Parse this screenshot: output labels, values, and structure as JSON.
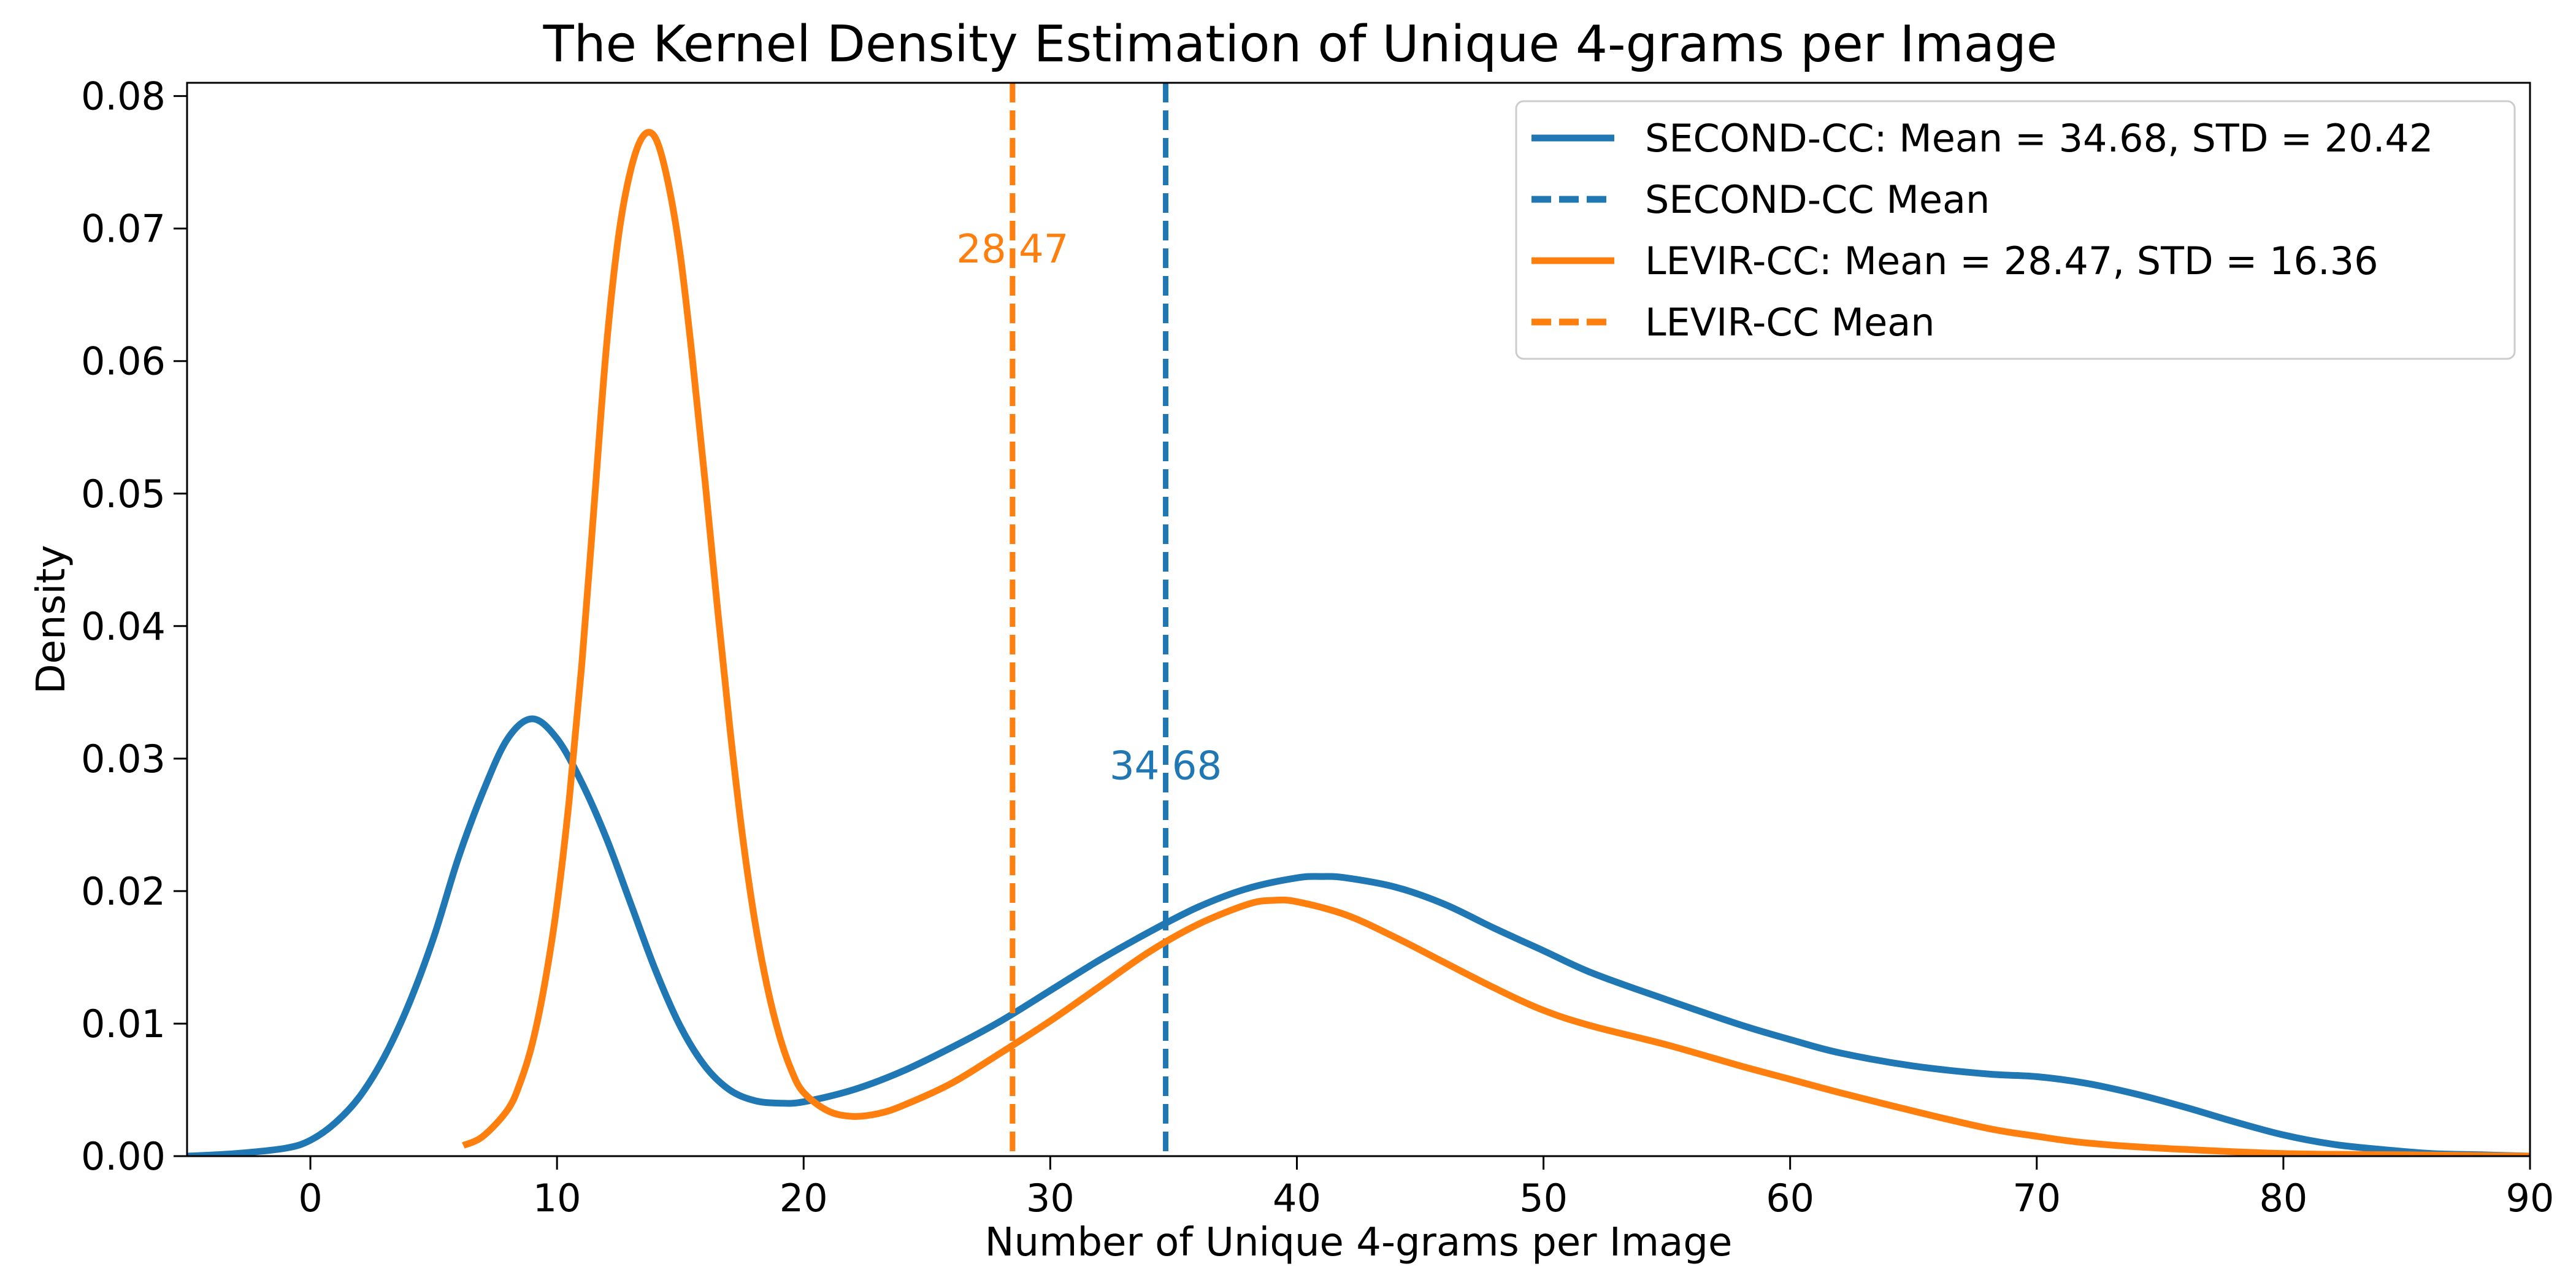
{
  "chart_data": {
    "type": "line",
    "title": "The Kernel Density Estimation of Unique 4-grams per Image",
    "xlabel": "Number of Unique 4-grams per Image",
    "ylabel": "Density",
    "xlim": [
      -5,
      90
    ],
    "ylim": [
      0,
      0.081
    ],
    "xticks": [
      0,
      10,
      20,
      30,
      40,
      50,
      60,
      70,
      80,
      90
    ],
    "xtick_labels": [
      "0",
      "10",
      "20",
      "30",
      "40",
      "50",
      "60",
      "70",
      "80",
      "90"
    ],
    "yticks": [
      0,
      0.01,
      0.02,
      0.03,
      0.04,
      0.05,
      0.06,
      0.07,
      0.08
    ],
    "ytick_labels": [
      "0.00",
      "0.01",
      "0.02",
      "0.03",
      "0.04",
      "0.05",
      "0.06",
      "0.07",
      "0.08"
    ],
    "grid": false,
    "legend_position": "top-right",
    "series": [
      {
        "name": "SECOND-CC: Mean = 34.68, STD = 20.42",
        "color": "#1f77b4",
        "style": "solid",
        "x": [
          -5,
          -3,
          -1,
          0,
          1,
          2,
          3,
          4,
          5,
          6,
          7,
          8,
          9,
          10,
          11,
          12,
          13,
          14,
          15,
          16,
          17,
          18,
          19,
          20,
          22,
          24,
          26,
          28,
          30,
          32,
          34,
          36,
          38,
          40,
          41,
          42,
          44,
          46,
          48,
          50,
          52,
          55,
          58,
          60,
          62,
          65,
          68,
          70,
          72,
          74,
          76,
          78,
          80,
          82,
          84,
          86,
          88,
          90
        ],
        "y": [
          0.0,
          0.0002,
          0.0006,
          0.0012,
          0.0025,
          0.0045,
          0.0075,
          0.0115,
          0.0165,
          0.0225,
          0.0275,
          0.0315,
          0.033,
          0.0315,
          0.0282,
          0.024,
          0.019,
          0.014,
          0.0098,
          0.0068,
          0.005,
          0.0042,
          0.004,
          0.0041,
          0.005,
          0.0064,
          0.0082,
          0.0102,
          0.0125,
          0.0148,
          0.0169,
          0.0188,
          0.0202,
          0.021,
          0.0211,
          0.021,
          0.0203,
          0.019,
          0.0172,
          0.0155,
          0.0138,
          0.0118,
          0.0099,
          0.0088,
          0.0078,
          0.0068,
          0.0062,
          0.006,
          0.0055,
          0.0047,
          0.0037,
          0.0026,
          0.0016,
          0.0009,
          0.0005,
          0.0002,
          0.0001,
          0.0
        ]
      },
      {
        "name": "SECOND-CC Mean",
        "color": "#1f77b4",
        "style": "dashed",
        "vline_x": 34.68,
        "annotation": "34.68",
        "annotation_y": 0.029
      },
      {
        "name": "LEVIR-CC: Mean = 28.47, STD = 16.36",
        "color": "#ff7f0e",
        "style": "solid",
        "x": [
          6.2,
          7,
          8,
          8.5,
          9,
          9.5,
          10,
          10.5,
          11,
          11.5,
          12,
          12.5,
          13,
          13.5,
          14,
          14.5,
          15,
          15.5,
          16,
          16.5,
          17,
          17.5,
          18,
          18.5,
          19,
          19.5,
          20,
          21,
          22,
          23,
          24,
          26,
          28,
          30,
          32,
          34,
          36,
          38,
          39,
          40,
          42,
          44,
          46,
          48,
          50,
          52,
          55,
          58,
          60,
          62,
          65,
          68,
          70,
          72,
          75,
          80,
          85,
          90
        ],
        "y": [
          0.0008,
          0.0015,
          0.0035,
          0.0055,
          0.0085,
          0.013,
          0.019,
          0.027,
          0.037,
          0.049,
          0.061,
          0.0695,
          0.0745,
          0.077,
          0.0768,
          0.0735,
          0.068,
          0.06,
          0.051,
          0.0415,
          0.0325,
          0.0245,
          0.018,
          0.013,
          0.0092,
          0.0065,
          0.0048,
          0.0034,
          0.003,
          0.0032,
          0.0038,
          0.0055,
          0.0078,
          0.0102,
          0.0128,
          0.0154,
          0.0175,
          0.019,
          0.0193,
          0.0192,
          0.0182,
          0.0165,
          0.0146,
          0.0127,
          0.011,
          0.0098,
          0.0084,
          0.0068,
          0.0058,
          0.0048,
          0.0034,
          0.0021,
          0.0015,
          0.001,
          0.0006,
          0.0002,
          0.0001,
          0.0
        ]
      },
      {
        "name": "LEVIR-CC Mean",
        "color": "#ff7f0e",
        "style": "dashed",
        "vline_x": 28.47,
        "annotation": "28.47",
        "annotation_y": 0.068
      }
    ]
  }
}
